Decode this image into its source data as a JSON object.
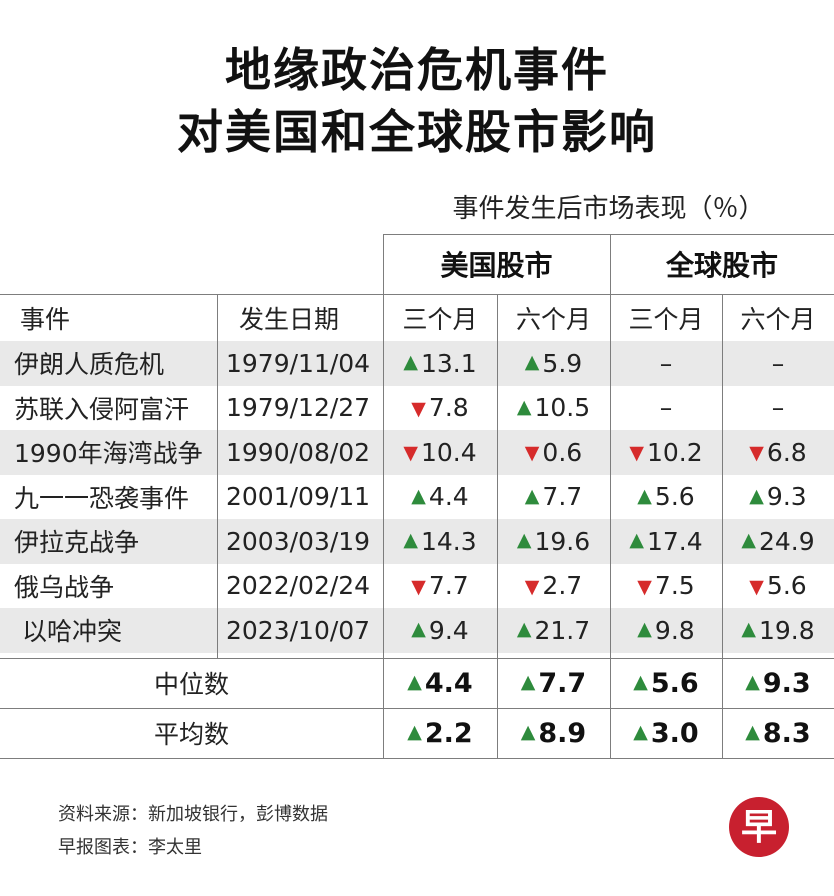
{
  "title": {
    "line1": "地缘政治危机事件",
    "line2": "对美国和全球股市影响"
  },
  "subtitle": "事件发生后市场表现（％）",
  "column_groups": [
    "美国股市",
    "全球股市"
  ],
  "columns": [
    "事件",
    "发生日期",
    "三个月",
    "六个月",
    "三个月",
    "六个月"
  ],
  "chart_data": {
    "type": "table",
    "title": "地缘政治危机事件 对美国和全球股市影响",
    "subtitle": "事件发生后市场表现（％）",
    "groups": [
      "美国股市",
      "全球股市"
    ],
    "headers": [
      "事件",
      "发生日期",
      "三个月",
      "六个月",
      "三个月",
      "六个月"
    ],
    "rows": [
      {
        "event": "伊朗人质危机",
        "date": "1979/11/04",
        "values": [
          {
            "dir": "up",
            "val": "13.1"
          },
          {
            "dir": "up",
            "val": "5.9"
          },
          {
            "dir": "none",
            "val": "–"
          },
          {
            "dir": "none",
            "val": "–"
          }
        ]
      },
      {
        "event": "苏联入侵阿富汗",
        "date": "1979/12/27",
        "values": [
          {
            "dir": "down",
            "val": "7.8"
          },
          {
            "dir": "up",
            "val": "10.5"
          },
          {
            "dir": "none",
            "val": "–"
          },
          {
            "dir": "none",
            "val": "–"
          }
        ]
      },
      {
        "event": "1990年海湾战争",
        "date": "1990/08/02",
        "values": [
          {
            "dir": "down",
            "val": "10.4"
          },
          {
            "dir": "down",
            "val": "0.6"
          },
          {
            "dir": "down",
            "val": "10.2"
          },
          {
            "dir": "down",
            "val": "6.8"
          }
        ]
      },
      {
        "event": "九一一恐袭事件",
        "date": "2001/09/11",
        "values": [
          {
            "dir": "up",
            "val": "4.4"
          },
          {
            "dir": "up",
            "val": "7.7"
          },
          {
            "dir": "up",
            "val": "5.6"
          },
          {
            "dir": "up",
            "val": "9.3"
          }
        ]
      },
      {
        "event": "伊拉克战争",
        "date": "2003/03/19",
        "values": [
          {
            "dir": "up",
            "val": "14.3"
          },
          {
            "dir": "up",
            "val": "19.6"
          },
          {
            "dir": "up",
            "val": "17.4"
          },
          {
            "dir": "up",
            "val": "24.9"
          }
        ]
      },
      {
        "event": "俄乌战争",
        "date": "2022/02/24",
        "values": [
          {
            "dir": "down",
            "val": "7.7"
          },
          {
            "dir": "down",
            "val": "2.7"
          },
          {
            "dir": "down",
            "val": "7.5"
          },
          {
            "dir": "down",
            "val": "5.6"
          }
        ]
      },
      {
        "event": "以哈冲突",
        "date": "2023/10/07",
        "values": [
          {
            "dir": "up",
            "val": "9.4"
          },
          {
            "dir": "up",
            "val": "21.7"
          },
          {
            "dir": "up",
            "val": "9.8"
          },
          {
            "dir": "up",
            "val": "19.8"
          }
        ]
      }
    ],
    "summary": [
      {
        "label": "中位数",
        "values": [
          {
            "dir": "up",
            "val": "4.4"
          },
          {
            "dir": "up",
            "val": "7.7"
          },
          {
            "dir": "up",
            "val": "5.6"
          },
          {
            "dir": "up",
            "val": "9.3"
          }
        ]
      },
      {
        "label": "平均数",
        "values": [
          {
            "dir": "up",
            "val": "2.2"
          },
          {
            "dir": "up",
            "val": "8.9"
          },
          {
            "dir": "up",
            "val": "3.0"
          },
          {
            "dir": "up",
            "val": "8.3"
          }
        ]
      }
    ]
  },
  "colors": {
    "up": "#2e8b3c",
    "down": "#d62b2b",
    "band": "#e9e9e9",
    "logo": "#c8202f"
  },
  "footer": {
    "source": "资料来源：新加坡银行，彭博数据",
    "credit": "早报图表：李太里"
  },
  "logo": {
    "char": "早"
  }
}
